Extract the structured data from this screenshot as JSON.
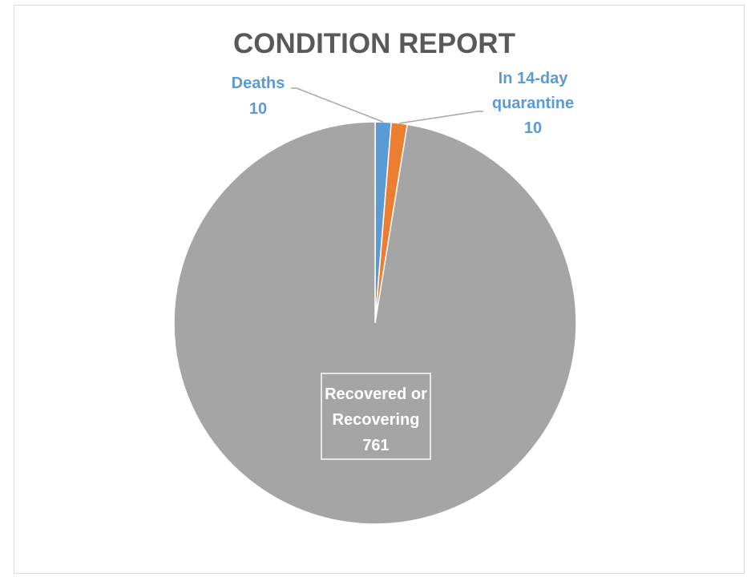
{
  "chart_data": {
    "type": "pie",
    "title": "CONDITION REPORT",
    "slices": [
      {
        "label": "Deaths",
        "value": 10,
        "color": "#5b9bd5",
        "label_lines": [
          "Deaths",
          "10"
        ]
      },
      {
        "label": "In 14-day quarantine",
        "value": 10,
        "color": "#ed7d31",
        "label_lines": [
          "In 14-day",
          "quarantine",
          "10"
        ]
      },
      {
        "label": "Recovered or Recovering",
        "value": 761,
        "color": "#a5a5a5",
        "label_lines": [
          "Recovered or",
          "Recovering",
          "761"
        ]
      }
    ],
    "legend": "none",
    "colors": {
      "title": "#595959",
      "small_labels": "#5b9bd5",
      "big_label": "#ffffff",
      "leader_line": "#a6a6a6"
    }
  }
}
